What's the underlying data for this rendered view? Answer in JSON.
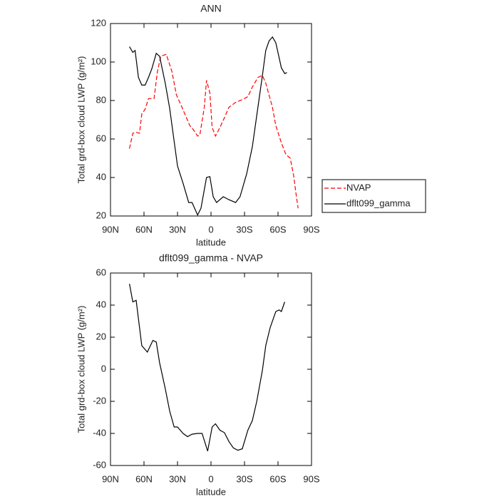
{
  "chart_data": [
    {
      "type": "line",
      "title": "ANN",
      "xlabel": "latitude",
      "ylabel": "Total grd-box cloud LWP (g/m²)",
      "xlim": [
        90,
        -90
      ],
      "xticks": [
        {
          "value": 90,
          "label": "90N"
        },
        {
          "value": 60,
          "label": "60N"
        },
        {
          "value": 30,
          "label": "30N"
        },
        0,
        {
          "value": -30,
          "label": "30S"
        },
        {
          "value": -60,
          "label": "60S"
        },
        {
          "value": -90,
          "label": "90S"
        }
      ],
      "ylim": [
        20,
        120
      ],
      "yticks": [
        20,
        40,
        60,
        80,
        100,
        120
      ],
      "legend": "right",
      "series": [
        {
          "name": "NVAP",
          "color": "#ff0000",
          "linestyle": "dashed",
          "x": [
            73,
            70,
            67,
            64,
            62,
            59,
            56,
            51,
            48,
            45,
            40,
            35,
            31,
            26,
            19,
            16,
            12,
            10,
            6,
            4,
            1,
            -1,
            -4,
            -8,
            -12,
            -16,
            -22,
            -28,
            -33,
            -37,
            -42,
            -46,
            -49,
            -55,
            -58,
            -63,
            -67,
            -71,
            -74,
            -76,
            -78
          ],
          "values": [
            55,
            63,
            63.5,
            63,
            73,
            75.5,
            81,
            81,
            95,
            103,
            104,
            95,
            83,
            76.5,
            67,
            65,
            61.5,
            62,
            76.5,
            90.5,
            84,
            66,
            61.5,
            66,
            71,
            76.5,
            79,
            80.5,
            82,
            87,
            92,
            93,
            89,
            76.5,
            67,
            58,
            52,
            50,
            41,
            32,
            24
          ]
        },
        {
          "name": "dflt099_gamma",
          "color": "#000000",
          "linestyle": "solid",
          "x": [
            73,
            70,
            68,
            65,
            62,
            59,
            56,
            53,
            49,
            46,
            41,
            37,
            30,
            25,
            20,
            17,
            12,
            9,
            4,
            1,
            -2,
            -5,
            -11,
            -16,
            -22,
            -26,
            -32,
            -37,
            -42,
            -46,
            -49,
            -52,
            -55,
            -58,
            -63,
            -66,
            -68
          ],
          "values": [
            108,
            105,
            106,
            92,
            88,
            88,
            92,
            96.5,
            104.5,
            103,
            89,
            76,
            46,
            37,
            27,
            27,
            20.5,
            24,
            40,
            40.5,
            30,
            27,
            30,
            28.5,
            27,
            30,
            42,
            56,
            76.5,
            93,
            106,
            111,
            113,
            110,
            97,
            94,
            94.5
          ]
        }
      ]
    },
    {
      "type": "line",
      "title": "dflt099_gamma - NVAP",
      "xlabel": "latitude",
      "ylabel": "Total grd-box cloud LWP (g/m²)",
      "xlim": [
        90,
        -90
      ],
      "xticks": [
        {
          "value": 90,
          "label": "90N"
        },
        {
          "value": 60,
          "label": "60N"
        },
        {
          "value": 30,
          "label": "30N"
        },
        0,
        {
          "value": -30,
          "label": "30S"
        },
        {
          "value": -60,
          "label": "60S"
        },
        {
          "value": -90,
          "label": "90S"
        }
      ],
      "ylim": [
        -60,
        60
      ],
      "yticks": [
        -60,
        -40,
        -20,
        0,
        20,
        40,
        60
      ],
      "series": [
        {
          "color": "#000000",
          "linestyle": "solid",
          "x": [
            73,
            70,
            67,
            62,
            57,
            52,
            49,
            46,
            41,
            37,
            33,
            30,
            25,
            21,
            17,
            12,
            8,
            3,
            -1,
            -4,
            -8,
            -12,
            -16,
            -20,
            -24,
            -28,
            -33,
            -37,
            -41,
            -46,
            -49,
            -53,
            -58,
            -61,
            -63,
            -66
          ],
          "values": [
            53.3,
            42,
            43,
            14.7,
            10.7,
            18,
            17,
            4,
            -12,
            -26,
            -36,
            -36,
            -40,
            -42,
            -40.5,
            -40,
            -40,
            -51,
            -36,
            -34,
            -38,
            -39.5,
            -45,
            -49,
            -50.5,
            -49.6,
            -38,
            -32,
            -20,
            -0.6,
            14.7,
            26,
            36,
            37,
            36,
            42
          ]
        }
      ]
    }
  ]
}
